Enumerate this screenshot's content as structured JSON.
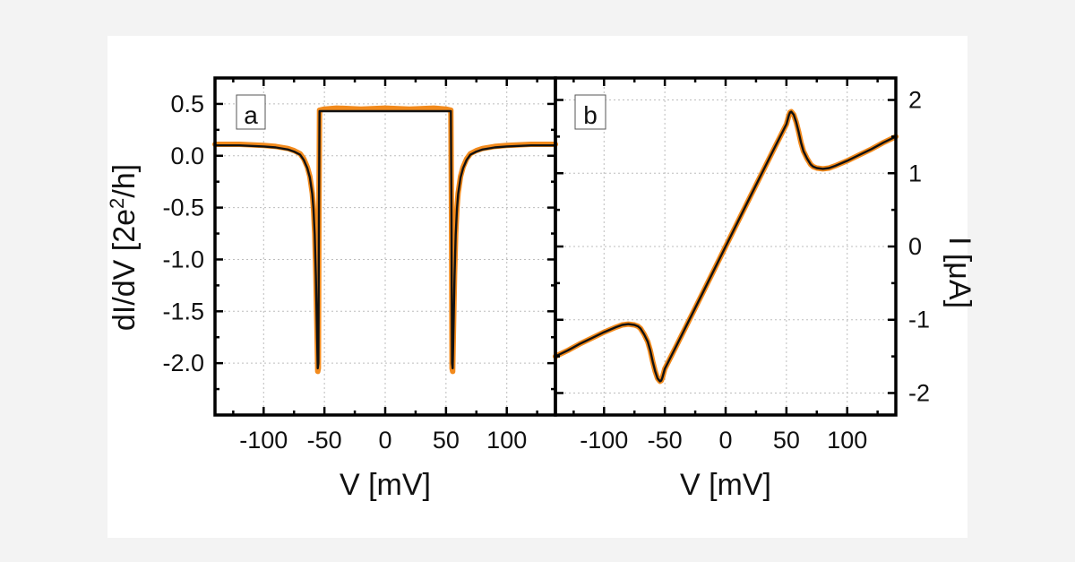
{
  "chart_data": [
    {
      "type": "line",
      "panel_label": "a",
      "xlabel": "V [mV]",
      "ylabel_main": "dI/dV [2e",
      "ylabel_sup": "2",
      "ylabel_tail": "/h]",
      "xlim": [
        -140,
        140
      ],
      "ylim": [
        -2.5,
        0.75
      ],
      "xticks": [
        -100,
        -50,
        0,
        50,
        100
      ],
      "xtick_labels": [
        "-100",
        "-50",
        "0",
        "50",
        "100"
      ],
      "yticks": [
        0.5,
        0.0,
        -0.5,
        -1.0,
        -1.5,
        -2.0
      ],
      "ytick_labels": [
        "0.5",
        "0.0",
        "-0.5",
        "-1.0",
        "-1.5",
        "-2.0"
      ],
      "grid": true,
      "series": [
        {
          "color": "#f28a1c",
          "x": [
            -140,
            -120,
            -100,
            -90,
            -80,
            -75,
            -70,
            -67,
            -64,
            -62,
            -60,
            -59,
            -58,
            -57,
            -56,
            -55.5,
            -55,
            -54.5,
            -54,
            -50,
            -40,
            -20,
            0,
            20,
            40,
            50,
            54,
            54.5,
            55,
            55.5,
            56,
            57,
            58,
            59,
            60,
            62,
            64,
            67,
            70,
            75,
            80,
            90,
            100,
            120,
            140
          ],
          "y": [
            0.11,
            0.11,
            0.1,
            0.09,
            0.07,
            0.05,
            0.02,
            -0.03,
            -0.11,
            -0.2,
            -0.36,
            -0.5,
            -0.75,
            -1.15,
            -1.75,
            -2.08,
            -2.05,
            -0.6,
            0.44,
            0.45,
            0.46,
            0.45,
            0.46,
            0.45,
            0.46,
            0.45,
            0.44,
            -0.6,
            -2.05,
            -2.08,
            -1.75,
            -1.15,
            -0.75,
            -0.5,
            -0.36,
            -0.2,
            -0.11,
            -0.03,
            0.02,
            0.05,
            0.07,
            0.09,
            0.1,
            0.11,
            0.11
          ]
        },
        {
          "color": "#111111",
          "x": [
            -140,
            -120,
            -100,
            -90,
            -80,
            -75,
            -70,
            -67,
            -64,
            -62,
            -60,
            -59,
            -58,
            -57,
            -56,
            -55.5,
            -55,
            -54.5,
            -54,
            -50,
            -20,
            0,
            20,
            50,
            54,
            54.5,
            55,
            55.5,
            56,
            57,
            58,
            59,
            60,
            62,
            64,
            67,
            70,
            75,
            80,
            90,
            100,
            120,
            140
          ],
          "y": [
            0.1,
            0.1,
            0.09,
            0.08,
            0.06,
            0.04,
            0.01,
            -0.04,
            -0.12,
            -0.21,
            -0.37,
            -0.51,
            -0.76,
            -1.16,
            -1.76,
            -2.05,
            -2.0,
            -0.6,
            0.43,
            0.43,
            0.43,
            0.43,
            0.43,
            0.43,
            0.43,
            -0.6,
            -2.0,
            -2.05,
            -1.76,
            -1.16,
            -0.76,
            -0.51,
            -0.37,
            -0.21,
            -0.12,
            -0.04,
            0.01,
            0.04,
            0.06,
            0.08,
            0.09,
            0.1,
            0.1
          ]
        }
      ]
    },
    {
      "type": "line",
      "panel_label": "b",
      "xlabel": "V [mV]",
      "ylabel": "I [μA]",
      "xlim": [
        -140,
        140
      ],
      "ylim": [
        -2.3,
        2.3
      ],
      "xticks": [
        -100,
        -50,
        0,
        50,
        100
      ],
      "xtick_labels": [
        "-100",
        "-50",
        "0",
        "50",
        "100"
      ],
      "yticks": [
        2,
        1,
        0,
        -1,
        -2
      ],
      "ytick_labels": [
        "2",
        "1",
        "0",
        "-1",
        "-2"
      ],
      "grid": true,
      "series": [
        {
          "color": "#f28a1c",
          "x": [
            -140,
            -130,
            -120,
            -110,
            -100,
            -90,
            -85,
            -80,
            -75,
            -72,
            -70,
            -67,
            -64,
            -62,
            -60,
            -58,
            -56,
            -55,
            -54,
            -53,
            -52,
            -50,
            -40,
            -20,
            0,
            20,
            40,
            50,
            52,
            53,
            54,
            55,
            56,
            58,
            60,
            62,
            64,
            67,
            70,
            72,
            75,
            80,
            85,
            90,
            100,
            110,
            120,
            130,
            140
          ],
          "y": [
            -1.5,
            -1.42,
            -1.33,
            -1.25,
            -1.17,
            -1.1,
            -1.07,
            -1.06,
            -1.07,
            -1.09,
            -1.12,
            -1.2,
            -1.3,
            -1.42,
            -1.57,
            -1.7,
            -1.8,
            -1.82,
            -1.84,
            -1.83,
            -1.79,
            -1.67,
            -1.34,
            -0.67,
            0.0,
            0.67,
            1.34,
            1.67,
            1.79,
            1.83,
            1.84,
            1.82,
            1.8,
            1.7,
            1.57,
            1.42,
            1.3,
            1.2,
            1.12,
            1.09,
            1.07,
            1.06,
            1.07,
            1.1,
            1.17,
            1.25,
            1.33,
            1.42,
            1.5
          ]
        },
        {
          "color": "#111111",
          "x": [
            -140,
            -130,
            -120,
            -110,
            -100,
            -90,
            -85,
            -80,
            -75,
            -72,
            -70,
            -67,
            -64,
            -62,
            -60,
            -58,
            -56,
            -55,
            -54,
            -53,
            -52,
            -50,
            -40,
            -20,
            0,
            20,
            40,
            50,
            52,
            53,
            54,
            55,
            56,
            58,
            60,
            62,
            64,
            67,
            70,
            72,
            75,
            80,
            85,
            90,
            100,
            110,
            120,
            130,
            140
          ],
          "y": [
            -1.5,
            -1.42,
            -1.33,
            -1.25,
            -1.17,
            -1.1,
            -1.07,
            -1.06,
            -1.07,
            -1.09,
            -1.12,
            -1.2,
            -1.3,
            -1.42,
            -1.57,
            -1.7,
            -1.8,
            -1.82,
            -1.84,
            -1.83,
            -1.79,
            -1.67,
            -1.34,
            -0.67,
            0.0,
            0.67,
            1.34,
            1.67,
            1.79,
            1.83,
            1.84,
            1.82,
            1.8,
            1.7,
            1.57,
            1.42,
            1.3,
            1.2,
            1.12,
            1.09,
            1.07,
            1.06,
            1.07,
            1.1,
            1.17,
            1.25,
            1.33,
            1.42,
            1.5
          ]
        }
      ]
    }
  ]
}
